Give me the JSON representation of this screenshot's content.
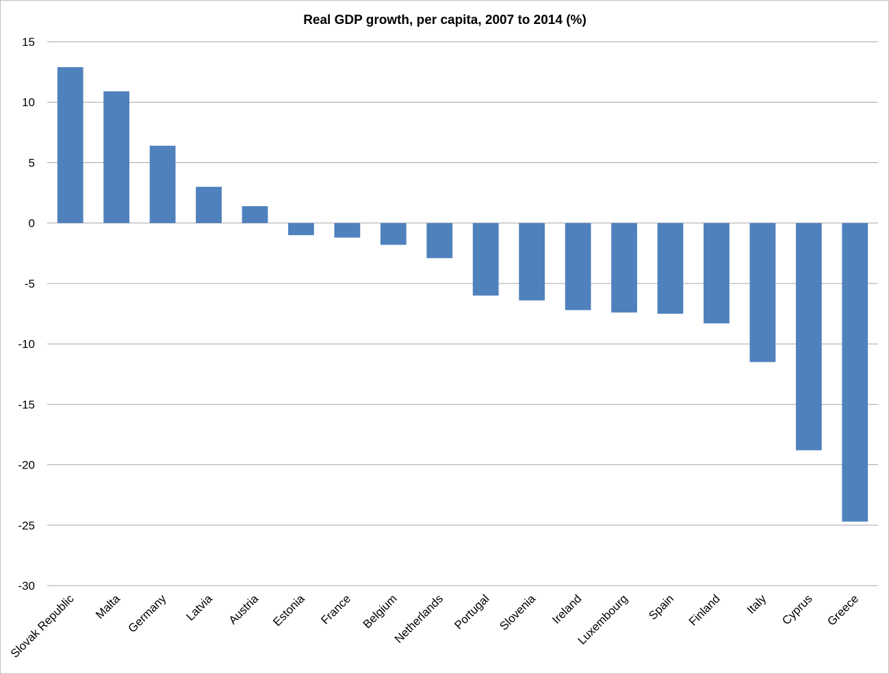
{
  "chart_data": {
    "type": "bar",
    "title": "Real GDP growth, per capita, 2007 to 2014  (%)",
    "xlabel": "",
    "ylabel": "",
    "ylim": [
      -30,
      15
    ],
    "yticks": [
      15,
      10,
      5,
      0,
      -5,
      -10,
      -15,
      -20,
      -25,
      -30
    ],
    "grid": true,
    "legend": "none",
    "bar_color": "#4f81bd",
    "categories": [
      "Slovak Republic",
      "Malta",
      "Germany",
      "Latvia",
      "Austria",
      "Estonia",
      "France",
      "Belgium",
      "Netherlands",
      "Portugal",
      "Slovenia",
      "Ireland",
      "Luxembourg",
      "Spain",
      "Finland",
      "Italy",
      "Cyprus",
      "Greece"
    ],
    "values": [
      12.9,
      10.9,
      6.4,
      3.0,
      1.4,
      -1.0,
      -1.2,
      -1.8,
      -2.9,
      -6.0,
      -6.4,
      -7.2,
      -7.4,
      -7.5,
      -8.3,
      -11.5,
      -18.8,
      -24.7
    ]
  }
}
